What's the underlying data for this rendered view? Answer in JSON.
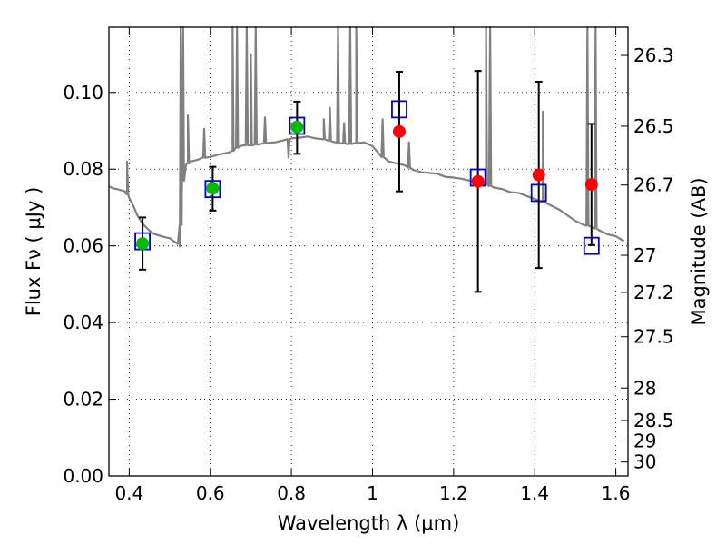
{
  "chart_data": {
    "type": "scatter",
    "title": "",
    "xlabel": "Wavelength  λ (μm)",
    "ylabel": "Flux  Fν  ( μJy )",
    "y2label": "Magnitude (AB)",
    "xlim": [
      0.35,
      1.63
    ],
    "ylim": [
      0.0,
      0.117
    ],
    "grid": true,
    "x_ticks": [
      0.4,
      0.6,
      0.8,
      1.0,
      1.2,
      1.4,
      1.6
    ],
    "x_tick_labels": [
      "0.4",
      "0.6",
      "0.8",
      "1",
      "1.2",
      "1.4",
      "1.6"
    ],
    "y_ticks": [
      0.0,
      0.02,
      0.04,
      0.06,
      0.08,
      0.1
    ],
    "y_tick_labels": [
      "0.00",
      "0.02",
      "0.04",
      "0.06",
      "0.08",
      "0.10"
    ],
    "y2_ticks": [
      26.3,
      26.5,
      26.7,
      27,
      27.2,
      27.5,
      28,
      28.5,
      29,
      30
    ],
    "y2_tick_labels": [
      "26.3",
      "26.5",
      "26.7",
      "27",
      "27.2",
      "27.5",
      "28",
      "28.5",
      "29",
      "30"
    ],
    "colors": {
      "model": "#808080",
      "optical": "#00bb00",
      "infrared": "#ff0000",
      "squares": "#0000cc",
      "errorbars": "#000000"
    },
    "series": [
      {
        "marker": "square-open",
        "x": [
          0.433,
          0.606,
          0.814,
          1.066,
          1.26,
          1.41,
          1.54
        ],
        "y": [
          0.0612,
          0.0748,
          0.0913,
          0.0956,
          0.0778,
          0.0738,
          0.06
        ]
      },
      {
        "marker": "circle-green",
        "x": [
          0.433,
          0.606,
          0.814
        ],
        "y": [
          0.0606,
          0.075,
          0.091
        ],
        "err_low": [
          0.0068,
          0.0058,
          0.007
        ],
        "err_high": [
          0.0068,
          0.0056,
          0.0066
        ]
      },
      {
        "marker": "circle-red",
        "x": [
          1.066,
          1.26,
          1.41,
          1.54
        ],
        "y": [
          0.0898,
          0.0768,
          0.0785,
          0.076
        ],
        "err_low": [
          0.0156,
          0.0288,
          0.0243,
          0.0158
        ],
        "err_high": [
          0.0156,
          0.0288,
          0.0243,
          0.0158
        ]
      }
    ],
    "model_spectrum": {
      "x": [
        0.35,
        0.36,
        0.37,
        0.38,
        0.39,
        0.395,
        0.4,
        0.41,
        0.42,
        0.43,
        0.44,
        0.45,
        0.46,
        0.47,
        0.48,
        0.49,
        0.5,
        0.51,
        0.52,
        0.525,
        0.53,
        0.535,
        0.54,
        0.545,
        0.55,
        0.56,
        0.57,
        0.58,
        0.59,
        0.6,
        0.62,
        0.64,
        0.65,
        0.655,
        0.66,
        0.67,
        0.68,
        0.7,
        0.72,
        0.74,
        0.76,
        0.78,
        0.8,
        0.82,
        0.84,
        0.86,
        0.88,
        0.9,
        0.92,
        0.94,
        0.96,
        0.98,
        1.0,
        1.02,
        1.04,
        1.06,
        1.08,
        1.1,
        1.12,
        1.14,
        1.16,
        1.18,
        1.2,
        1.22,
        1.24,
        1.26,
        1.28,
        1.3,
        1.32,
        1.34,
        1.36,
        1.38,
        1.4,
        1.42,
        1.44,
        1.46,
        1.48,
        1.5,
        1.52,
        1.54,
        1.56,
        1.58,
        1.6,
        1.62
      ],
      "y": [
        0.0755,
        0.075,
        0.0748,
        0.0745,
        0.0742,
        0.0735,
        0.0725,
        0.0705,
        0.068,
        0.0662,
        0.065,
        0.064,
        0.0632,
        0.0628,
        0.0625,
        0.0622,
        0.062,
        0.0612,
        0.0605,
        0.0598,
        0.074,
        0.079,
        0.081,
        0.0815,
        0.082,
        0.0822,
        0.0825,
        0.083,
        0.083,
        0.0832,
        0.0838,
        0.0842,
        0.0845,
        0.0848,
        0.0852,
        0.0858,
        0.0862,
        0.0862,
        0.0865,
        0.0868,
        0.087,
        0.0875,
        0.088,
        0.0882,
        0.0885,
        0.088,
        0.0878,
        0.0872,
        0.0868,
        0.0865,
        0.0868,
        0.087,
        0.086,
        0.0835,
        0.082,
        0.0815,
        0.081,
        0.0798,
        0.0792,
        0.079,
        0.0788,
        0.078,
        0.0778,
        0.0775,
        0.077,
        0.0765,
        0.076,
        0.0752,
        0.0748,
        0.074,
        0.0738,
        0.073,
        0.0722,
        0.0715,
        0.0705,
        0.0695,
        0.068,
        0.0665,
        0.0655,
        0.065,
        0.064,
        0.063,
        0.0625,
        0.0612
      ]
    },
    "model_lines": [
      {
        "x": 0.395,
        "peak": 0.082
      },
      {
        "x": 0.527,
        "peak": 0.117
      },
      {
        "x": 0.533,
        "peak": 0.117
      },
      {
        "x": 0.545,
        "peak": 0.094
      },
      {
        "x": 0.585,
        "peak": 0.0905
      },
      {
        "x": 0.655,
        "peak": 0.117
      },
      {
        "x": 0.666,
        "peak": 0.117
      },
      {
        "x": 0.69,
        "peak": 0.117
      },
      {
        "x": 0.7,
        "peak": 0.11
      },
      {
        "x": 0.712,
        "peak": 0.117
      },
      {
        "x": 0.735,
        "peak": 0.0935
      },
      {
        "x": 0.793,
        "peak": 0.083
      },
      {
        "x": 0.88,
        "peak": 0.093
      },
      {
        "x": 0.895,
        "peak": 0.096
      },
      {
        "x": 0.915,
        "peak": 0.117
      },
      {
        "x": 0.93,
        "peak": 0.092
      },
      {
        "x": 0.945,
        "peak": 0.117
      },
      {
        "x": 0.96,
        "peak": 0.117
      },
      {
        "x": 1.025,
        "peak": 0.093
      },
      {
        "x": 1.09,
        "peak": 0.087
      },
      {
        "x": 1.28,
        "peak": 0.117
      },
      {
        "x": 1.29,
        "peak": 0.117
      },
      {
        "x": 1.42,
        "peak": 0.095
      },
      {
        "x": 1.53,
        "peak": 0.117
      },
      {
        "x": 1.55,
        "peak": 0.117
      }
    ]
  }
}
